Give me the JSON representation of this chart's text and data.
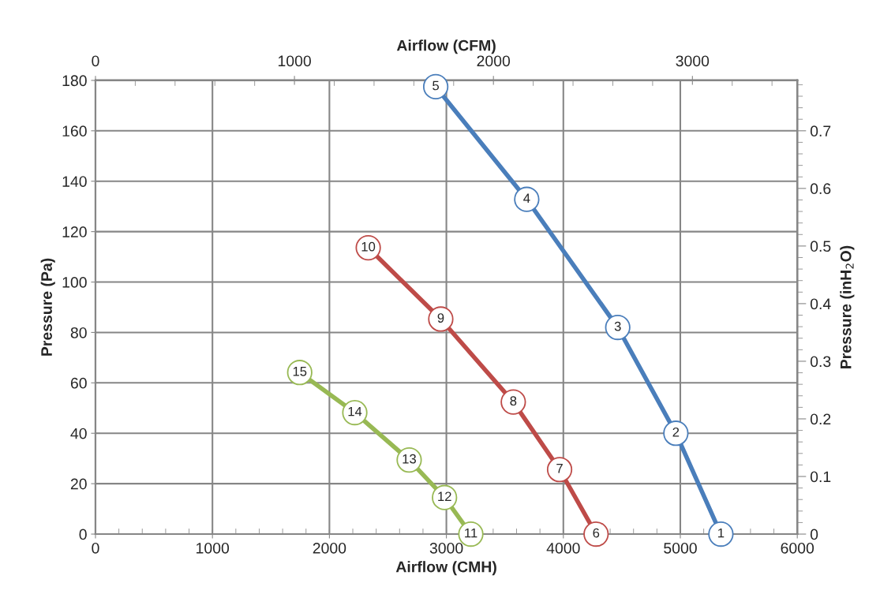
{
  "chart_data": {
    "type": "line",
    "xlabel": "Airflow (CMH)",
    "ylabel": "Pressure (Pa)",
    "x2label": "Airflow (CFM)",
    "y2label": "Pressure (inH$_{2}$O)",
    "series": [
      {
        "color": "#4a7ebb",
        "x": [
          5347,
          4962,
          4465,
          3687,
          2909
        ],
        "values": [
          0,
          40,
          82,
          132.8,
          177.5
        ]
      },
      {
        "color": "#be4b48",
        "x": [
          4280,
          3968,
          3572,
          2952,
          2332
        ],
        "values": [
          0,
          25.6,
          52.4,
          85.3,
          113.6
        ]
      },
      {
        "color": "#98b954",
        "x": [
          3209,
          2984,
          2682,
          2217,
          1746
        ],
        "values": [
          0,
          14.5,
          29.4,
          48.2,
          64.1
        ]
      }
    ],
    "annotations": [
      {
        "text": "1",
        "x": 5347,
        "y": 0
      },
      {
        "text": "2",
        "x": 4962,
        "y": 40
      },
      {
        "text": "3",
        "x": 4465,
        "y": 82
      },
      {
        "text": "4",
        "x": 3687,
        "y": 132.8
      },
      {
        "text": "5",
        "x": 2909,
        "y": 177.5
      },
      {
        "text": "6",
        "x": 4280,
        "y": 0
      },
      {
        "text": "7",
        "x": 3968,
        "y": 25.6
      },
      {
        "text": "8",
        "x": 3572,
        "y": 52.4
      },
      {
        "text": "9",
        "x": 2952,
        "y": 85.3
      },
      {
        "text": "10",
        "x": 2332,
        "y": 113.6
      },
      {
        "text": "11",
        "x": 3209,
        "y": 0
      },
      {
        "text": "12",
        "x": 2984,
        "y": 14.5
      },
      {
        "text": "13",
        "x": 2682,
        "y": 29.4
      },
      {
        "text": "14",
        "x": 2217,
        "y": 48.2
      },
      {
        "text": "15",
        "x": 1746,
        "y": 64.1
      }
    ],
    "marker": "circle",
    "line_style": "solid",
    "grid": true,
    "legend": false,
    "xlim": [
      0,
      6000
    ],
    "ylim": [
      0,
      180
    ],
    "x2lim": [
      0,
      3527
    ],
    "y2lim": [
      0,
      0.7875
    ],
    "xticks": [
      0,
      {
        "value": 200,
        "label": null
      },
      {
        "value": 400,
        "label": null
      },
      {
        "value": 600,
        "label": null
      },
      {
        "value": 800,
        "label": null
      },
      1000,
      {
        "value": 1200,
        "label": null
      },
      {
        "value": 1400,
        "label": null
      },
      {
        "value": 1600,
        "label": null
      },
      {
        "value": 1800,
        "label": null
      },
      2000,
      {
        "value": 2200,
        "label": null
      },
      {
        "value": 2400,
        "label": null
      },
      {
        "value": 2600,
        "label": null
      },
      {
        "value": 2800,
        "label": null
      },
      3000,
      {
        "value": 3200,
        "label": null
      },
      {
        "value": 3400,
        "label": null
      },
      {
        "value": 3600,
        "label": null
      },
      {
        "value": 3800,
        "label": null
      },
      4000,
      {
        "value": 4200,
        "label": null
      },
      {
        "value": 4400,
        "label": null
      },
      {
        "value": 4600,
        "label": null
      },
      {
        "value": 4800,
        "label": null
      },
      5000,
      {
        "value": 5200,
        "label": null
      },
      {
        "value": 5400,
        "label": null
      },
      {
        "value": 5600,
        "label": null
      },
      {
        "value": 5800,
        "label": null
      },
      6000
    ],
    "yticks": [
      0,
      20,
      40,
      60,
      80,
      100,
      120,
      140,
      160,
      180
    ],
    "x2ticks": [
      0,
      {
        "value": 200,
        "label": null
      },
      {
        "value": 400,
        "label": null
      },
      {
        "value": 600,
        "label": null
      },
      {
        "value": 800,
        "label": null
      },
      1000,
      {
        "value": 1200,
        "label": null
      },
      {
        "value": 1400,
        "label": null
      },
      {
        "value": 1600,
        "label": null
      },
      {
        "value": 1800,
        "label": null
      },
      2000,
      {
        "value": 2200,
        "label": null
      },
      {
        "value": 2400,
        "label": null
      },
      {
        "value": 2600,
        "label": null
      },
      {
        "value": 2800,
        "label": null
      },
      3000,
      {
        "value": 3200,
        "label": null
      },
      {
        "value": 3400,
        "label": null
      }
    ],
    "y2ticks": [
      0,
      {
        "value": 0.02,
        "label": null
      },
      {
        "value": 0.04,
        "label": null
      },
      {
        "value": 0.06,
        "label": null
      },
      {
        "value": 0.08,
        "label": null
      },
      0.1,
      {
        "value": 0.12,
        "label": null
      },
      {
        "value": 0.14,
        "label": null
      },
      {
        "value": 0.16,
        "label": null
      },
      {
        "value": 0.18,
        "label": null
      },
      0.2,
      {
        "value": 0.22,
        "label": null
      },
      {
        "value": 0.24,
        "label": null
      },
      {
        "value": 0.26,
        "label": null
      },
      {
        "value": 0.28,
        "label": null
      },
      0.3,
      {
        "value": 0.32,
        "label": null
      },
      {
        "value": 0.34,
        "label": null
      },
      {
        "value": 0.36,
        "label": null
      },
      {
        "value": 0.38,
        "label": null
      },
      0.4,
      {
        "value": 0.42,
        "label": null
      },
      {
        "value": 0.44,
        "label": null
      },
      {
        "value": 0.46,
        "label": null
      },
      {
        "value": 0.48,
        "label": null
      },
      0.5,
      {
        "value": 0.52,
        "label": null
      },
      {
        "value": 0.54,
        "label": null
      },
      {
        "value": 0.56,
        "label": null
      },
      {
        "value": 0.58,
        "label": null
      },
      0.6,
      {
        "value": 0.62,
        "label": null
      },
      {
        "value": 0.64,
        "label": null
      },
      {
        "value": 0.66,
        "label": null
      },
      {
        "value": 0.68,
        "label": null
      },
      0.7,
      {
        "value": 0.72,
        "label": null
      },
      {
        "value": 0.74,
        "label": null
      },
      {
        "value": 0.76,
        "label": null
      },
      {
        "value": 0.78,
        "label": null
      }
    ]
  }
}
